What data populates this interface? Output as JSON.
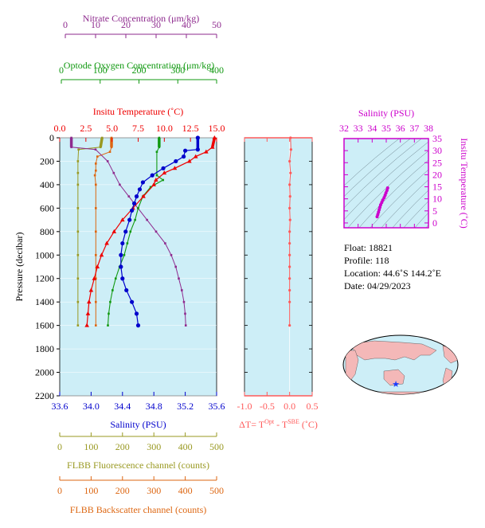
{
  "colors": {
    "background": "#cdeef7",
    "temperature": "#ee0000",
    "salinity": "#0000cc",
    "oxygen": "#119911",
    "nitrate": "#8e2a8e",
    "fluorescence": "#999922",
    "backscatter": "#dd6611",
    "delta_t": "#ff5a5a",
    "ts_axis": "#cc00cc"
  },
  "info": {
    "float": "Float:  18821",
    "profile": "Profile:  118",
    "location": "Location:  44.6˚S  144.2˚E",
    "date": "Date:  04/29/2023"
  },
  "chart_data": [
    {
      "type": "line",
      "name": "profile",
      "ylabel": "Pressure (decibar)",
      "ylim": [
        2200,
        0
      ],
      "yticks": [
        "0",
        "200",
        "400",
        "600",
        "800",
        "1000",
        "1200",
        "1400",
        "1600",
        "1800",
        "2000",
        "2200"
      ],
      "axes": {
        "nitrate": {
          "label": "Nitrate Concentration (μm/kg)",
          "range": [
            0,
            50
          ],
          "ticks": [
            "0",
            "10",
            "20",
            "30",
            "40",
            "50"
          ]
        },
        "oxygen": {
          "label": "Optode Oxygen Concentration (μm/kg)",
          "range": [
            0,
            400
          ],
          "ticks": [
            "0",
            "100",
            "200",
            "300",
            "400"
          ]
        },
        "temperature": {
          "label": "Insitu Temperature (˚C)",
          "range": [
            0,
            15
          ],
          "ticks": [
            "0.0",
            "2.5",
            "5.0",
            "7.5",
            "10.0",
            "12.5",
            "15.0"
          ]
        },
        "salinity": {
          "label": "Salinity (PSU)",
          "range": [
            33.6,
            35.6
          ],
          "ticks": [
            "33.6",
            "34.0",
            "34.4",
            "34.8",
            "35.2",
            "35.6"
          ]
        },
        "fluorescence": {
          "label": "FLBB Fluorescence channel (counts)",
          "range": [
            0,
            500
          ],
          "ticks": [
            "0",
            "100",
            "200",
            "300",
            "400",
            "500"
          ]
        },
        "backscatter": {
          "label": "FLBB Backscatter channel (counts)",
          "range": [
            0,
            500
          ],
          "ticks": [
            "0",
            "100",
            "200",
            "300",
            "400",
            "500"
          ]
        }
      },
      "series": {
        "temperature": [
          [
            14.8,
            0
          ],
          [
            14.6,
            80
          ],
          [
            14.0,
            120
          ],
          [
            13.0,
            160
          ],
          [
            12.4,
            200
          ],
          [
            11.0,
            260
          ],
          [
            10.0,
            300
          ],
          [
            9.2,
            360
          ],
          [
            9.0,
            400
          ],
          [
            8.0,
            500
          ],
          [
            7.0,
            600
          ],
          [
            6.0,
            700
          ],
          [
            5.2,
            800
          ],
          [
            4.5,
            900
          ],
          [
            4.0,
            1000
          ],
          [
            3.6,
            1100
          ],
          [
            3.3,
            1200
          ],
          [
            3.0,
            1300
          ],
          [
            2.8,
            1400
          ],
          [
            2.7,
            1500
          ],
          [
            2.6,
            1600
          ]
        ],
        "salinity": [
          [
            35.36,
            0
          ],
          [
            35.36,
            100
          ],
          [
            35.2,
            110
          ],
          [
            35.18,
            160
          ],
          [
            35.08,
            200
          ],
          [
            34.92,
            260
          ],
          [
            34.78,
            320
          ],
          [
            34.66,
            380
          ],
          [
            34.62,
            440
          ],
          [
            34.58,
            500
          ],
          [
            34.55,
            560
          ],
          [
            34.52,
            620
          ],
          [
            34.49,
            700
          ],
          [
            34.44,
            800
          ],
          [
            34.4,
            900
          ],
          [
            34.38,
            1000
          ],
          [
            34.38,
            1100
          ],
          [
            34.4,
            1200
          ],
          [
            34.45,
            1300
          ],
          [
            34.52,
            1400
          ],
          [
            34.58,
            1500
          ],
          [
            34.6,
            1600
          ]
        ],
        "oxygen": [
          [
            252,
            0
          ],
          [
            252,
            80
          ],
          [
            246,
            120
          ],
          [
            246,
            320
          ],
          [
            262,
            360
          ],
          [
            230,
            420
          ],
          [
            210,
            500
          ],
          [
            198,
            600
          ],
          [
            190,
            700
          ],
          [
            178,
            800
          ],
          [
            170,
            900
          ],
          [
            162,
            1000
          ],
          [
            150,
            1100
          ],
          [
            140,
            1200
          ],
          [
            132,
            1300
          ],
          [
            126,
            1400
          ],
          [
            122,
            1500
          ],
          [
            120,
            1600
          ]
        ],
        "nitrate": [
          [
            2,
            0
          ],
          [
            2,
            80
          ],
          [
            10,
            100
          ],
          [
            14,
            200
          ],
          [
            16,
            300
          ],
          [
            18,
            400
          ],
          [
            21,
            500
          ],
          [
            24,
            600
          ],
          [
            27,
            700
          ],
          [
            30,
            800
          ],
          [
            33,
            900
          ],
          [
            35,
            1000
          ],
          [
            36.5,
            1100
          ],
          [
            37.5,
            1200
          ],
          [
            38.5,
            1300
          ],
          [
            39.2,
            1400
          ],
          [
            39.6,
            1500
          ],
          [
            39.8,
            1600
          ]
        ],
        "fluorescence": [
          [
            135,
            0
          ],
          [
            130,
            80
          ],
          [
            60,
            100
          ],
          [
            58,
            200
          ],
          [
            58,
            300
          ],
          [
            58,
            400
          ],
          [
            58,
            600
          ],
          [
            58,
            800
          ],
          [
            58,
            1000
          ],
          [
            58,
            1200
          ],
          [
            58,
            1400
          ],
          [
            58,
            1600
          ]
        ],
        "backscatter": [
          [
            165,
            0
          ],
          [
            165,
            80
          ],
          [
            160,
            120
          ],
          [
            120,
            160
          ],
          [
            115,
            220
          ],
          [
            115,
            280
          ],
          [
            112,
            320
          ],
          [
            115,
            400
          ],
          [
            115,
            600
          ],
          [
            115,
            800
          ],
          [
            115,
            1000
          ],
          [
            115,
            1200
          ],
          [
            115,
            1400
          ],
          [
            115,
            1600
          ]
        ]
      }
    },
    {
      "type": "line",
      "name": "delta_t",
      "xlabel": "ΔT= T",
      "xlabel_sup1": "Opt",
      "xlabel_mid": " - T",
      "xlabel_sup2": "SBE",
      "xlabel_end": " (˚C)",
      "xlim": [
        -1.0,
        0.5
      ],
      "xticks": [
        "-1.0",
        "-0.5",
        "0.0",
        "0.5"
      ],
      "x": [
        0.02,
        0.03,
        0.0,
        0.02,
        0.0,
        0.01,
        0.0,
        0.01,
        0.0,
        0.0,
        0.0,
        0.0,
        0.0,
        0.0,
        0.0,
        0.0
      ],
      "y": [
        0,
        100,
        200,
        300,
        400,
        500,
        600,
        700,
        800,
        900,
        1000,
        1100,
        1200,
        1300,
        1400,
        1600
      ]
    },
    {
      "type": "scatter",
      "name": "ts_diagram",
      "title": "Salinity (PSU)",
      "ylabel": "Insitu Temperature (˚C)",
      "xlim": [
        32,
        38
      ],
      "ylim": [
        -2,
        35
      ],
      "xticks": [
        "32",
        "33",
        "34",
        "35",
        "36",
        "37",
        "38"
      ],
      "yticks": [
        "0",
        "5",
        "10",
        "15",
        "20",
        "25",
        "30",
        "35"
      ],
      "x": [
        34.35,
        34.4,
        34.45,
        34.5,
        34.55,
        34.6,
        34.68,
        34.75,
        34.85,
        34.92,
        34.98,
        35.05,
        35.1
      ],
      "y": [
        2.6,
        3.5,
        4.5,
        5.5,
        6.5,
        7.5,
        8.5,
        9.5,
        10.5,
        11.5,
        12.5,
        13.5,
        14.5
      ]
    }
  ]
}
